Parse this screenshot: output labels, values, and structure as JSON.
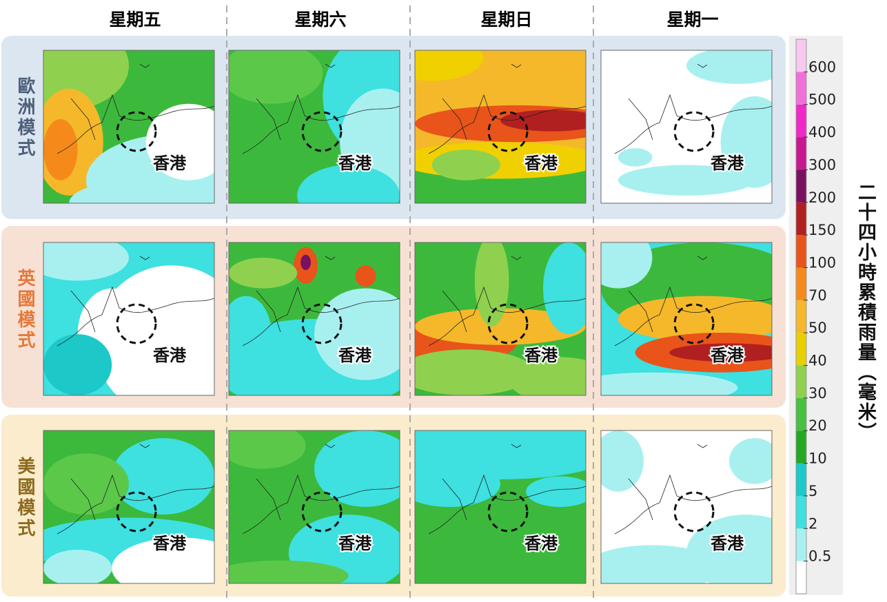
{
  "columns": [
    "星期五",
    "星期六",
    "星期日",
    "星期一"
  ],
  "rows": [
    {
      "label": "歐洲模式"
    },
    {
      "label": "英國模式"
    },
    {
      "label": "美國模式"
    }
  ],
  "hk_label": "香港",
  "colorbar": {
    "title": "二十四小時累積雨量（毫米）",
    "levels": [
      0.5,
      2,
      5,
      10,
      20,
      30,
      40,
      50,
      70,
      100,
      150,
      200,
      300,
      400,
      500,
      600
    ],
    "colors": [
      "#ffffff",
      "#a8f0f0",
      "#3ee0e0",
      "#1cc8c8",
      "#22a822",
      "#48c040",
      "#8fd14f",
      "#e8d000",
      "#f5b82a",
      "#f58a1a",
      "#e8541a",
      "#b02020",
      "#7a1060",
      "#c81890",
      "#f028c8",
      "#f070d8",
      "#f8c8f0"
    ]
  }
}
